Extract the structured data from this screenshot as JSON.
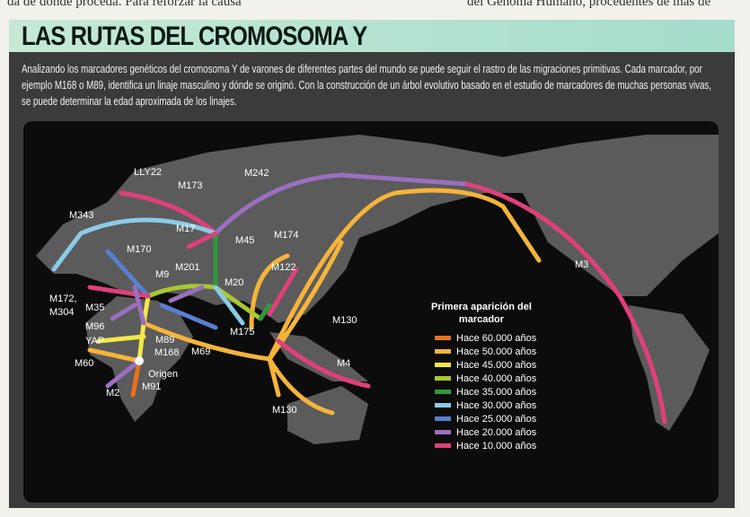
{
  "page_text": {
    "left": "da de dónde proceda. Para reforzar la causa",
    "right": "del Genoma Humano, procedentes de más de"
  },
  "title": "LAS RUTAS DEL CROMOSOMA Y",
  "intro": "Analizando los marcadores genéticos del cromosoma Y de varones de diferentes partes del mundo se puede seguir el rastro de las migraciones primitivas. Cada marcador, por ejemplo M168 o M89, identifica un linaje masculino y dónde se originó. Con la construcción de un árbol evolutivo basado en el estudio de marcadores de muchas personas vivas, se puede determinar la edad aproximada de los linajes.",
  "markers": [
    "LLY22",
    "M173",
    "M242",
    "M343",
    "M17",
    "M45",
    "M174",
    "M170",
    "M9",
    "M201",
    "M122",
    "M3",
    "M20",
    "M172,",
    "M304",
    "M35",
    "M130",
    "M175",
    "M96",
    "YAP",
    "M89",
    "M168",
    "M69",
    "M60",
    "Origen",
    "M2",
    "M91",
    "M4",
    "M130"
  ],
  "legend": {
    "title": "Primera aparición del marcador",
    "items": [
      {
        "label": "Hace 60.000 años",
        "color": "#e8731e"
      },
      {
        "label": "Hace 50.000 años",
        "color": "#f5b43a"
      },
      {
        "label": "Hace 45.000 años",
        "color": "#f2e84a"
      },
      {
        "label": "Hace 40.000 años",
        "color": "#a8c832"
      },
      {
        "label": "Hace 35.000 años",
        "color": "#2f9a3a"
      },
      {
        "label": "Hace 30.000 años",
        "color": "#8ccbe6"
      },
      {
        "label": "Hace 25.000 años",
        "color": "#5a7fd0"
      },
      {
        "label": "Hace 20.000 años",
        "color": "#9a6fc0"
      },
      {
        "label": "Hace 10.000 años",
        "color": "#e0407a"
      }
    ]
  }
}
